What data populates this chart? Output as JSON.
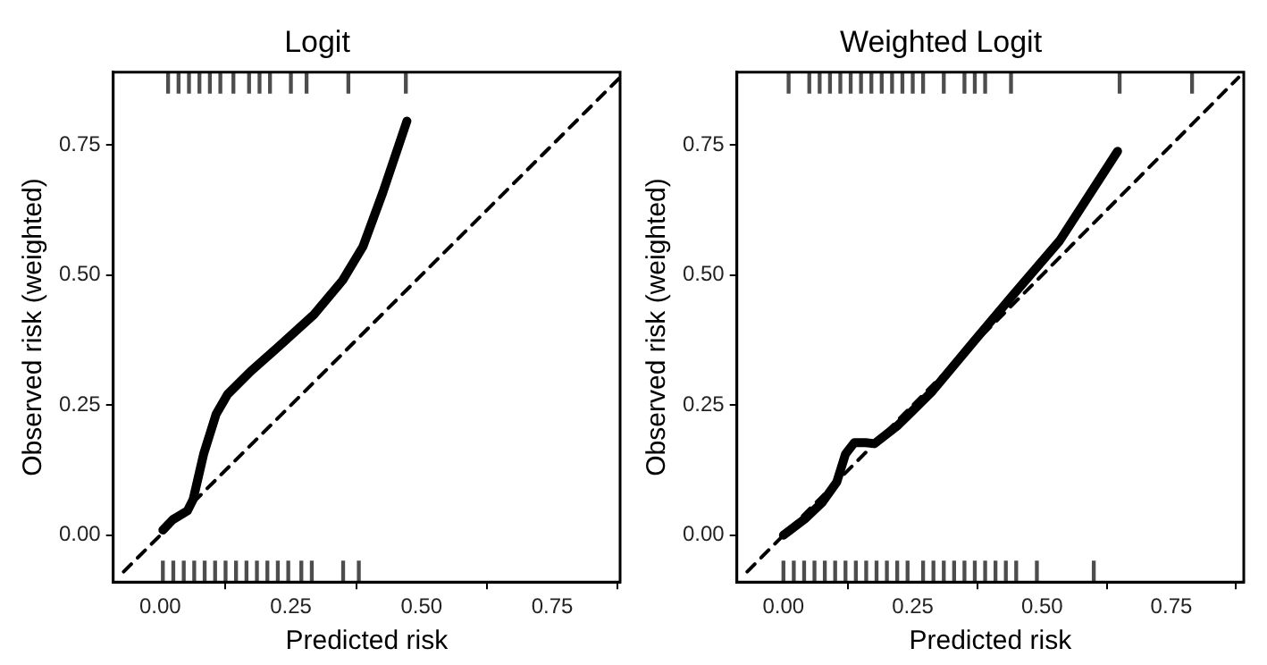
{
  "chart_data": [
    {
      "type": "line",
      "title": "Logit",
      "xlabel": "Predicted risk",
      "ylabel": "Observed risk (weighted)",
      "xlim": [
        -0.09,
        0.88
      ],
      "ylim": [
        -0.09,
        0.89
      ],
      "xticks": [
        {
          "value": 0,
          "label": "0.00"
        },
        {
          "value": 0.25,
          "label": "0.25"
        },
        {
          "value": 0.5,
          "label": "0.50"
        },
        {
          "value": 0.75,
          "label": "0.75"
        }
      ],
      "yticks": [
        {
          "value": 0,
          "label": "0.00"
        },
        {
          "value": 0.25,
          "label": "0.25"
        },
        {
          "value": 0.5,
          "label": "0.50"
        },
        {
          "value": 0.75,
          "label": "0.75"
        }
      ],
      "grid": false,
      "legend": false,
      "series": [
        {
          "color": "#000000",
          "line_style": "solid",
          "x": [
            0.005,
            0.024,
            0.052,
            0.063,
            0.083,
            0.107,
            0.129,
            0.173,
            0.228,
            0.294,
            0.349,
            0.388,
            0.426,
            0.472
          ],
          "values": [
            0.01,
            0.03,
            0.047,
            0.069,
            0.156,
            0.233,
            0.271,
            0.315,
            0.364,
            0.424,
            0.49,
            0.555,
            0.659,
            0.796
          ]
        },
        {
          "color": "#000000",
          "line_style": "dashed",
          "x": [
            -0.07,
            0.88
          ],
          "values": [
            -0.07,
            0.88
          ]
        },
        {
          "type": "bar",
          "color": "#4d4d4d",
          "x": [
            0.005,
            0.025,
            0.045,
            0.065,
            0.085,
            0.105,
            0.125,
            0.145,
            0.165,
            0.185,
            0.205,
            0.225,
            0.245,
            0.27,
            0.29,
            0.35,
            0.38
          ],
          "base": [
            -0.09,
            -0.09,
            -0.09,
            -0.09,
            -0.09,
            -0.09,
            -0.09,
            -0.09,
            -0.09,
            -0.09,
            -0.09,
            -0.09,
            -0.09,
            -0.09,
            -0.09,
            -0.09,
            -0.09
          ],
          "values": [
            0.04,
            0.04,
            0.04,
            0.04,
            0.04,
            0.04,
            0.04,
            0.04,
            0.04,
            0.04,
            0.04,
            0.04,
            0.04,
            0.04,
            0.04,
            0.04,
            0.04
          ]
        },
        {
          "type": "bar",
          "color": "#4d4d4d",
          "x": [
            0.015,
            0.035,
            0.055,
            0.075,
            0.095,
            0.115,
            0.14,
            0.17,
            0.19,
            0.21,
            0.25,
            0.28,
            0.36,
            0.47
          ],
          "base": [
            0.85,
            0.85,
            0.85,
            0.85,
            0.85,
            0.85,
            0.85,
            0.85,
            0.85,
            0.85,
            0.85,
            0.85,
            0.85,
            0.85
          ],
          "values": [
            0.04,
            0.04,
            0.04,
            0.04,
            0.04,
            0.04,
            0.04,
            0.04,
            0.04,
            0.04,
            0.04,
            0.04,
            0.04,
            0.04
          ]
        }
      ]
    },
    {
      "type": "line",
      "title": "Weighted Logit",
      "xlabel": "Predicted risk",
      "ylabel": "Observed risk (weighted)",
      "xlim": [
        -0.09,
        0.89
      ],
      "ylim": [
        -0.09,
        0.89
      ],
      "xticks": [
        {
          "value": 0,
          "label": "0.00"
        },
        {
          "value": 0.25,
          "label": "0.25"
        },
        {
          "value": 0.5,
          "label": "0.50"
        },
        {
          "value": 0.75,
          "label": "0.75"
        }
      ],
      "yticks": [
        {
          "value": 0,
          "label": "0.00"
        },
        {
          "value": 0.25,
          "label": "0.25"
        },
        {
          "value": 0.5,
          "label": "0.50"
        },
        {
          "value": 0.75,
          "label": "0.75"
        }
      ],
      "grid": false,
      "legend": false,
      "series": [
        {
          "color": "#000000",
          "line_style": "solid",
          "x": [
            0.0,
            0.041,
            0.075,
            0.103,
            0.12,
            0.137,
            0.159,
            0.176,
            0.221,
            0.288,
            0.366,
            0.444,
            0.534,
            0.646
          ],
          "values": [
            0.0,
            0.031,
            0.063,
            0.102,
            0.156,
            0.178,
            0.178,
            0.176,
            0.211,
            0.277,
            0.37,
            0.462,
            0.566,
            0.738
          ]
        },
        {
          "color": "#000000",
          "line_style": "dashed",
          "x": [
            -0.07,
            0.88
          ],
          "values": [
            -0.07,
            0.88
          ]
        },
        {
          "type": "bar",
          "color": "#4d4d4d",
          "x": [
            0.0,
            0.02,
            0.04,
            0.06,
            0.08,
            0.1,
            0.12,
            0.14,
            0.16,
            0.18,
            0.2,
            0.22,
            0.24,
            0.27,
            0.29,
            0.31,
            0.33,
            0.35,
            0.37,
            0.39,
            0.41,
            0.43,
            0.45,
            0.49,
            0.6
          ],
          "base": [
            -0.09,
            -0.09,
            -0.09,
            -0.09,
            -0.09,
            -0.09,
            -0.09,
            -0.09,
            -0.09,
            -0.09,
            -0.09,
            -0.09,
            -0.09,
            -0.09,
            -0.09,
            -0.09,
            -0.09,
            -0.09,
            -0.09,
            -0.09,
            -0.09,
            -0.09,
            -0.09,
            -0.09,
            -0.09
          ],
          "values": [
            0.04,
            0.04,
            0.04,
            0.04,
            0.04,
            0.04,
            0.04,
            0.04,
            0.04,
            0.04,
            0.04,
            0.04,
            0.04,
            0.04,
            0.04,
            0.04,
            0.04,
            0.04,
            0.04,
            0.04,
            0.04,
            0.04,
            0.04,
            0.04,
            0.04
          ]
        },
        {
          "type": "bar",
          "color": "#4d4d4d",
          "x": [
            0.01,
            0.05,
            0.07,
            0.09,
            0.11,
            0.13,
            0.15,
            0.17,
            0.19,
            0.21,
            0.23,
            0.25,
            0.27,
            0.31,
            0.35,
            0.37,
            0.39,
            0.44,
            0.65,
            0.79
          ],
          "base": [
            0.85,
            0.85,
            0.85,
            0.85,
            0.85,
            0.85,
            0.85,
            0.85,
            0.85,
            0.85,
            0.85,
            0.85,
            0.85,
            0.85,
            0.85,
            0.85,
            0.85,
            0.85,
            0.85,
            0.85
          ],
          "values": [
            0.04,
            0.04,
            0.04,
            0.04,
            0.04,
            0.04,
            0.04,
            0.04,
            0.04,
            0.04,
            0.04,
            0.04,
            0.04,
            0.04,
            0.04,
            0.04,
            0.04,
            0.04,
            0.04,
            0.04
          ]
        }
      ]
    }
  ]
}
